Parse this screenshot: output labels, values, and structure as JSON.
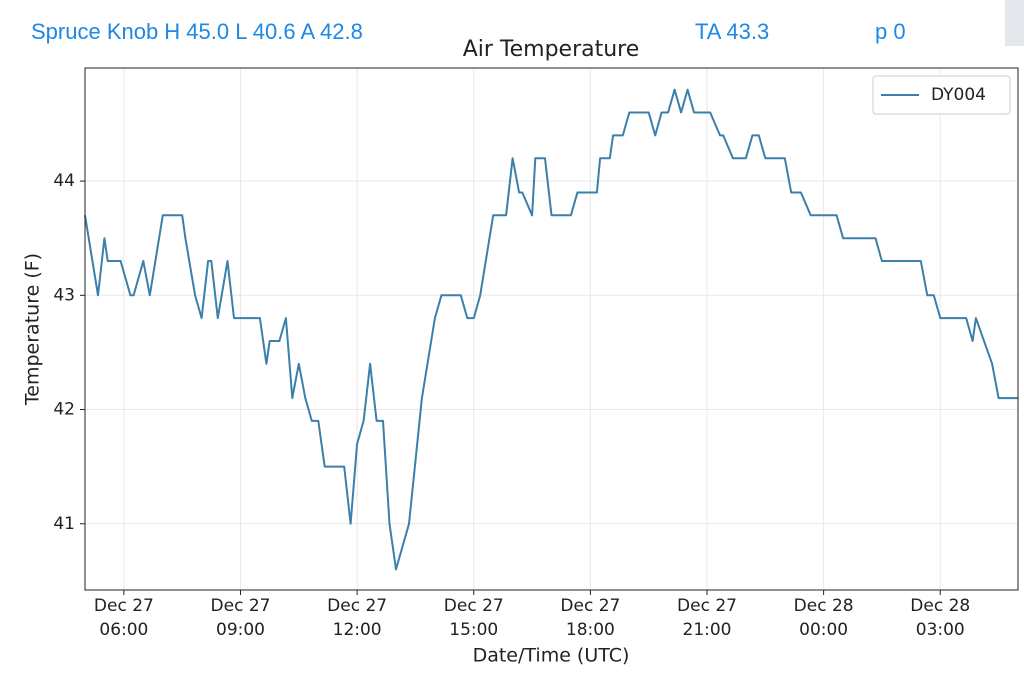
{
  "header": {
    "station": "Spruce Knob H 45.0 L 40.6 A 42.8",
    "ta": "TA 43.3",
    "p": "p 0"
  },
  "chart_data": {
    "type": "line",
    "title": "Air Temperature",
    "xlabel": "Date/Time (UTC)",
    "ylabel": "Temperature (F)",
    "x": [
      "Dec 27 05:00",
      "Dec 27 05:20",
      "Dec 27 05:30",
      "Dec 27 05:35",
      "Dec 27 05:55",
      "Dec 27 06:10",
      "Dec 27 06:15",
      "Dec 27 06:30",
      "Dec 27 06:40",
      "Dec 27 07:00",
      "Dec 27 07:30",
      "Dec 27 07:35",
      "Dec 27 07:50",
      "Dec 27 08:00",
      "Dec 27 08:10",
      "Dec 27 08:15",
      "Dec 27 08:25",
      "Dec 27 08:40",
      "Dec 27 08:50",
      "Dec 27 09:30",
      "Dec 27 09:40",
      "Dec 27 09:45",
      "Dec 27 10:00",
      "Dec 27 10:10",
      "Dec 27 10:20",
      "Dec 27 10:30",
      "Dec 27 10:40",
      "Dec 27 10:50",
      "Dec 27 11:00",
      "Dec 27 11:10",
      "Dec 27 11:40",
      "Dec 27 11:50",
      "Dec 27 12:00",
      "Dec 27 12:10",
      "Dec 27 12:20",
      "Dec 27 12:30",
      "Dec 27 12:40",
      "Dec 27 12:50",
      "Dec 27 13:00",
      "Dec 27 13:20",
      "Dec 27 13:40",
      "Dec 27 14:00",
      "Dec 27 14:10",
      "Dec 27 14:40",
      "Dec 27 14:50",
      "Dec 27 15:00",
      "Dec 27 15:10",
      "Dec 27 15:30",
      "Dec 27 15:50",
      "Dec 27 16:00",
      "Dec 27 16:10",
      "Dec 27 16:15",
      "Dec 27 16:30",
      "Dec 27 16:35",
      "Dec 27 16:50",
      "Dec 27 17:00",
      "Dec 27 17:30",
      "Dec 27 17:40",
      "Dec 27 18:10",
      "Dec 27 18:15",
      "Dec 27 18:30",
      "Dec 27 18:35",
      "Dec 27 18:50",
      "Dec 27 19:00",
      "Dec 27 19:30",
      "Dec 27 19:40",
      "Dec 27 19:50",
      "Dec 27 20:00",
      "Dec 27 20:10",
      "Dec 27 20:20",
      "Dec 27 20:30",
      "Dec 27 20:40",
      "Dec 27 21:05",
      "Dec 27 21:20",
      "Dec 27 21:25",
      "Dec 27 21:40",
      "Dec 27 22:00",
      "Dec 27 22:10",
      "Dec 27 22:20",
      "Dec 27 22:30",
      "Dec 27 23:00",
      "Dec 27 23:10",
      "Dec 27 23:25",
      "Dec 27 23:40",
      "Dec 28 00:20",
      "Dec 28 00:30",
      "Dec 28 01:20",
      "Dec 28 01:30",
      "Dec 28 02:30",
      "Dec 28 02:40",
      "Dec 28 02:50",
      "Dec 28 03:00",
      "Dec 28 03:40",
      "Dec 28 03:50",
      "Dec 28 03:55",
      "Dec 28 04:20",
      "Dec 28 04:30",
      "Dec 28 05:00"
    ],
    "series": [
      {
        "name": "DY004",
        "color": "#3b7fab",
        "values": [
          43.7,
          43.0,
          43.5,
          43.3,
          43.3,
          43.0,
          43.0,
          43.3,
          43.0,
          43.7,
          43.7,
          43.5,
          43.0,
          42.8,
          43.3,
          43.3,
          42.8,
          43.3,
          42.8,
          42.8,
          42.4,
          42.6,
          42.6,
          42.8,
          42.1,
          42.4,
          42.1,
          41.9,
          41.9,
          41.5,
          41.5,
          41.0,
          41.7,
          41.9,
          42.4,
          41.9,
          41.9,
          41.0,
          40.6,
          41.0,
          42.1,
          42.8,
          43.0,
          43.0,
          42.8,
          42.8,
          43.0,
          43.7,
          43.7,
          44.2,
          43.9,
          43.9,
          43.7,
          44.2,
          44.2,
          43.7,
          43.7,
          43.9,
          43.9,
          44.2,
          44.2,
          44.4,
          44.4,
          44.6,
          44.6,
          44.4,
          44.6,
          44.6,
          44.8,
          44.6,
          44.8,
          44.6,
          44.6,
          44.4,
          44.4,
          44.2,
          44.2,
          44.4,
          44.4,
          44.2,
          44.2,
          43.9,
          43.9,
          43.7,
          43.7,
          43.5,
          43.5,
          43.3,
          43.3,
          43.0,
          43.0,
          42.8,
          42.8,
          42.6,
          42.8,
          42.4,
          42.1,
          42.1
        ]
      }
    ],
    "xlim": [
      "Dec 27 05:00",
      "Dec 28 05:00"
    ],
    "xticks": [
      "Dec 27 06:00",
      "Dec 27 09:00",
      "Dec 27 12:00",
      "Dec 27 15:00",
      "Dec 27 18:00",
      "Dec 27 21:00",
      "Dec 28 00:00",
      "Dec 28 03:00"
    ],
    "ylim": [
      40.42,
      44.99
    ],
    "yticks": [
      41,
      42,
      43,
      44
    ],
    "grid": true,
    "legend": "upper right"
  }
}
